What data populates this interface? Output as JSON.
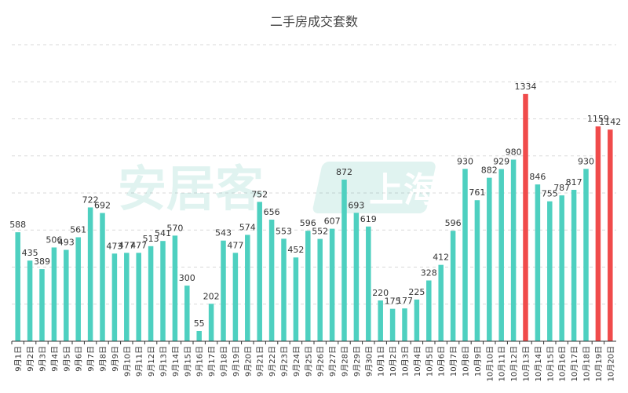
{
  "chart_data": {
    "type": "bar",
    "title": "二手房成交套数",
    "xlabel": "",
    "ylabel": "",
    "ylim": [
      0,
      1600
    ],
    "grid": true,
    "legend": "none",
    "categories": [
      "9月1日",
      "9月2日",
      "9月3日",
      "9月4日",
      "9月5日",
      "9月6日",
      "9月7日",
      "9月8日",
      "9月9日",
      "9月10日",
      "9月11日",
      "9月12日",
      "9月13日",
      "9月14日",
      "9月15日",
      "9月16日",
      "9月17日",
      "9月18日",
      "9月19日",
      "9月20日",
      "9月21日",
      "9月22日",
      "9月23日",
      "9月24日",
      "9月25日",
      "9月26日",
      "9月27日",
      "9月28日",
      "9月29日",
      "9月30日",
      "10月1日",
      "10月2日",
      "10月3日",
      "10月4日",
      "10月5日",
      "10月6日",
      "10月7日",
      "10月8日",
      "10月9日",
      "10月10日",
      "10月11日",
      "10月12日",
      "10月13日",
      "10月14日",
      "10月15日",
      "10月16日",
      "10月17日",
      "10月18日",
      "10月19日",
      "10月20日"
    ],
    "values": [
      588,
      435,
      389,
      506,
      493,
      561,
      722,
      692,
      473,
      477,
      477,
      513,
      541,
      570,
      300,
      55,
      202,
      543,
      477,
      574,
      752,
      656,
      553,
      452,
      596,
      552,
      607,
      872,
      693,
      619,
      220,
      175,
      177,
      225,
      328,
      412,
      596,
      930,
      761,
      882,
      929,
      980,
      1334,
      846,
      755,
      787,
      817,
      930,
      1159,
      1142
    ],
    "highlight_indices": [
      42,
      48,
      49
    ],
    "colors": {
      "bar": "#4ED0C0",
      "highlight": "#F04B4B",
      "grid": "#D9D9D9",
      "axis": "#333333",
      "label": "#333333"
    }
  },
  "watermark": {
    "text": "安居客",
    "badge": "上海"
  }
}
